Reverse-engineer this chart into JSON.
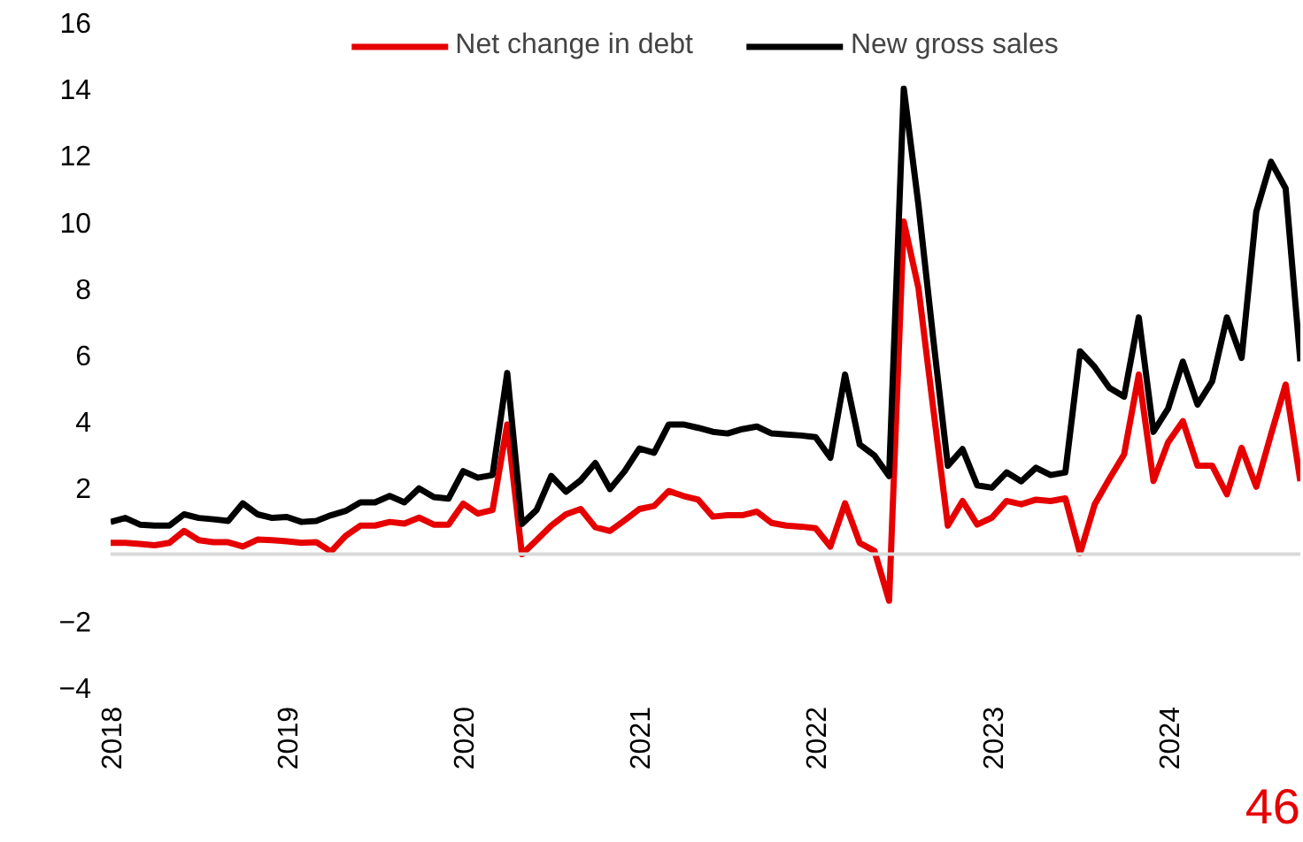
{
  "chart_data": {
    "type": "line",
    "x": [
      "2018-01",
      "2018-02",
      "2018-03",
      "2018-04",
      "2018-05",
      "2018-06",
      "2018-07",
      "2018-08",
      "2018-09",
      "2018-10",
      "2018-11",
      "2018-12",
      "2019-01",
      "2019-02",
      "2019-03",
      "2019-04",
      "2019-05",
      "2019-06",
      "2019-07",
      "2019-08",
      "2019-09",
      "2019-10",
      "2019-11",
      "2019-12",
      "2020-01",
      "2020-02",
      "2020-03",
      "2020-04",
      "2020-05",
      "2020-06",
      "2020-07",
      "2020-08",
      "2020-09",
      "2020-10",
      "2020-11",
      "2020-12",
      "2021-01",
      "2021-02",
      "2021-03",
      "2021-04",
      "2021-05",
      "2021-06",
      "2021-07",
      "2021-08",
      "2021-09",
      "2021-10",
      "2021-11",
      "2021-12",
      "2022-01",
      "2022-02",
      "2022-03",
      "2022-04",
      "2022-05",
      "2022-06",
      "2022-07",
      "2022-08",
      "2022-09",
      "2022-10",
      "2022-11",
      "2022-12",
      "2023-01",
      "2023-02",
      "2023-03",
      "2023-04",
      "2023-05",
      "2023-06",
      "2023-07",
      "2023-08",
      "2023-09",
      "2023-10",
      "2023-11",
      "2023-12",
      "2024-01",
      "2024-02",
      "2024-03",
      "2024-04",
      "2024-05",
      "2024-06",
      "2024-07",
      "2024-08",
      "2024-09",
      "2024-10"
    ],
    "series": [
      {
        "name": "Net change in debt",
        "color": "#e60000",
        "values": [
          0.34,
          0.34,
          0.31,
          0.27,
          0.34,
          0.7,
          0.42,
          0.36,
          0.36,
          0.23,
          0.44,
          0.42,
          0.39,
          0.34,
          0.36,
          0.08,
          0.55,
          0.86,
          0.86,
          0.97,
          0.92,
          1.1,
          0.89,
          0.89,
          1.52,
          1.22,
          1.33,
          3.9,
          0.0,
          0.42,
          0.86,
          1.2,
          1.36,
          0.81,
          0.7,
          1.02,
          1.36,
          1.45,
          1.9,
          1.75,
          1.64,
          1.13,
          1.17,
          1.17,
          1.28,
          0.94,
          0.86,
          0.83,
          0.78,
          0.23,
          1.53,
          0.34,
          0.1,
          -1.4,
          10.0,
          8.0,
          4.4,
          0.86,
          1.6,
          0.89,
          1.1,
          1.6,
          1.5,
          1.64,
          1.6,
          1.68,
          0.03,
          1.5,
          2.27,
          3.0,
          5.4,
          2.2,
          3.37,
          4.0,
          2.66,
          2.66,
          1.8,
          3.2,
          2.03,
          3.6,
          5.1,
          2.2
        ]
      },
      {
        "name": "New gross sales",
        "color": "#000000",
        "values": [
          0.97,
          1.09,
          0.89,
          0.86,
          0.86,
          1.2,
          1.09,
          1.05,
          1.0,
          1.53,
          1.2,
          1.09,
          1.12,
          0.97,
          1.0,
          1.17,
          1.3,
          1.56,
          1.56,
          1.75,
          1.56,
          1.98,
          1.72,
          1.67,
          2.5,
          2.3,
          2.38,
          5.45,
          0.91,
          1.33,
          2.35,
          1.88,
          2.22,
          2.74,
          1.96,
          2.5,
          3.18,
          3.05,
          3.9,
          3.9,
          3.8,
          3.68,
          3.63,
          3.76,
          3.84,
          3.63,
          3.6,
          3.57,
          3.52,
          2.9,
          5.4,
          3.3,
          2.97,
          2.35,
          14.0,
          10.5,
          6.5,
          2.66,
          3.16,
          2.07,
          2.0,
          2.46,
          2.19,
          2.6,
          2.38,
          2.46,
          6.1,
          5.63,
          5.0,
          4.74,
          7.12,
          3.68,
          4.38,
          5.79,
          4.5,
          5.2,
          7.12,
          5.9,
          10.3,
          11.8,
          11.0,
          5.8
        ]
      }
    ],
    "xlim": [
      "2018-01",
      "2024-10"
    ],
    "xticks": [
      "2018",
      "2019",
      "2020",
      "2021",
      "2022",
      "2023",
      "2024"
    ],
    "ylim": [
      -4,
      16
    ],
    "yticks": [
      -4,
      -2,
      2,
      4,
      6,
      8,
      10,
      12,
      14,
      16
    ],
    "grid": false,
    "ref_lines": [
      {
        "axis": "y",
        "value": 0,
        "color": "#d9d9d9"
      }
    ],
    "legend": "top",
    "marker": "none",
    "line_style": "solid",
    "annotations": [
      "46"
    ]
  }
}
